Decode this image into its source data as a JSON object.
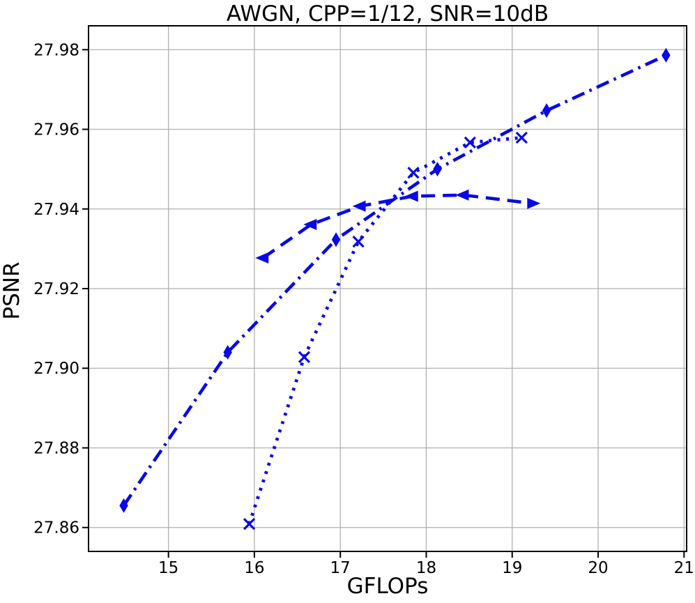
{
  "chart_data": {
    "type": "line",
    "title": "AWGN, CPP=1/12, SNR=10dB",
    "xlabel": "GFLOPs",
    "ylabel": "PSNR",
    "xlim": [
      14.07,
      21.03
    ],
    "ylim": [
      27.854,
      27.986
    ],
    "x_ticks": [
      "15",
      "16",
      "17",
      "18",
      "19",
      "20",
      "21"
    ],
    "y_ticks": [
      "27.86",
      "27.88",
      "27.90",
      "27.92",
      "27.94",
      "27.96",
      "27.98"
    ],
    "grid": true,
    "legend_position": "none",
    "colors": {
      "series": "#0808e8",
      "grid": "#b0b0b0",
      "axis": "#000000"
    },
    "series": [
      {
        "name": "dash-dot-diamond-curve",
        "linestyle": "dashdot",
        "marker": "thin-diamond",
        "x": [
          14.48,
          15.69,
          16.95,
          18.13,
          19.4,
          20.79
        ],
        "y": [
          27.8655,
          27.904,
          27.9323,
          27.95,
          27.9647,
          27.9786
        ]
      },
      {
        "name": "dashed-triangle-curve",
        "linestyle": "dashed",
        "marker": "triangle",
        "x": [
          16.1,
          16.66,
          17.23,
          17.84,
          18.43,
          19.24
        ],
        "y": [
          27.9277,
          27.9361,
          27.9407,
          27.9432,
          27.9435,
          27.9414
        ]
      },
      {
        "name": "dotted-x-curve",
        "linestyle": "dotted",
        "marker": "x",
        "x": [
          15.94,
          16.58,
          17.21,
          17.85,
          18.51,
          19.11
        ],
        "y": [
          27.8609,
          27.9028,
          27.9318,
          27.9491,
          27.9567,
          27.9579
        ]
      }
    ]
  }
}
